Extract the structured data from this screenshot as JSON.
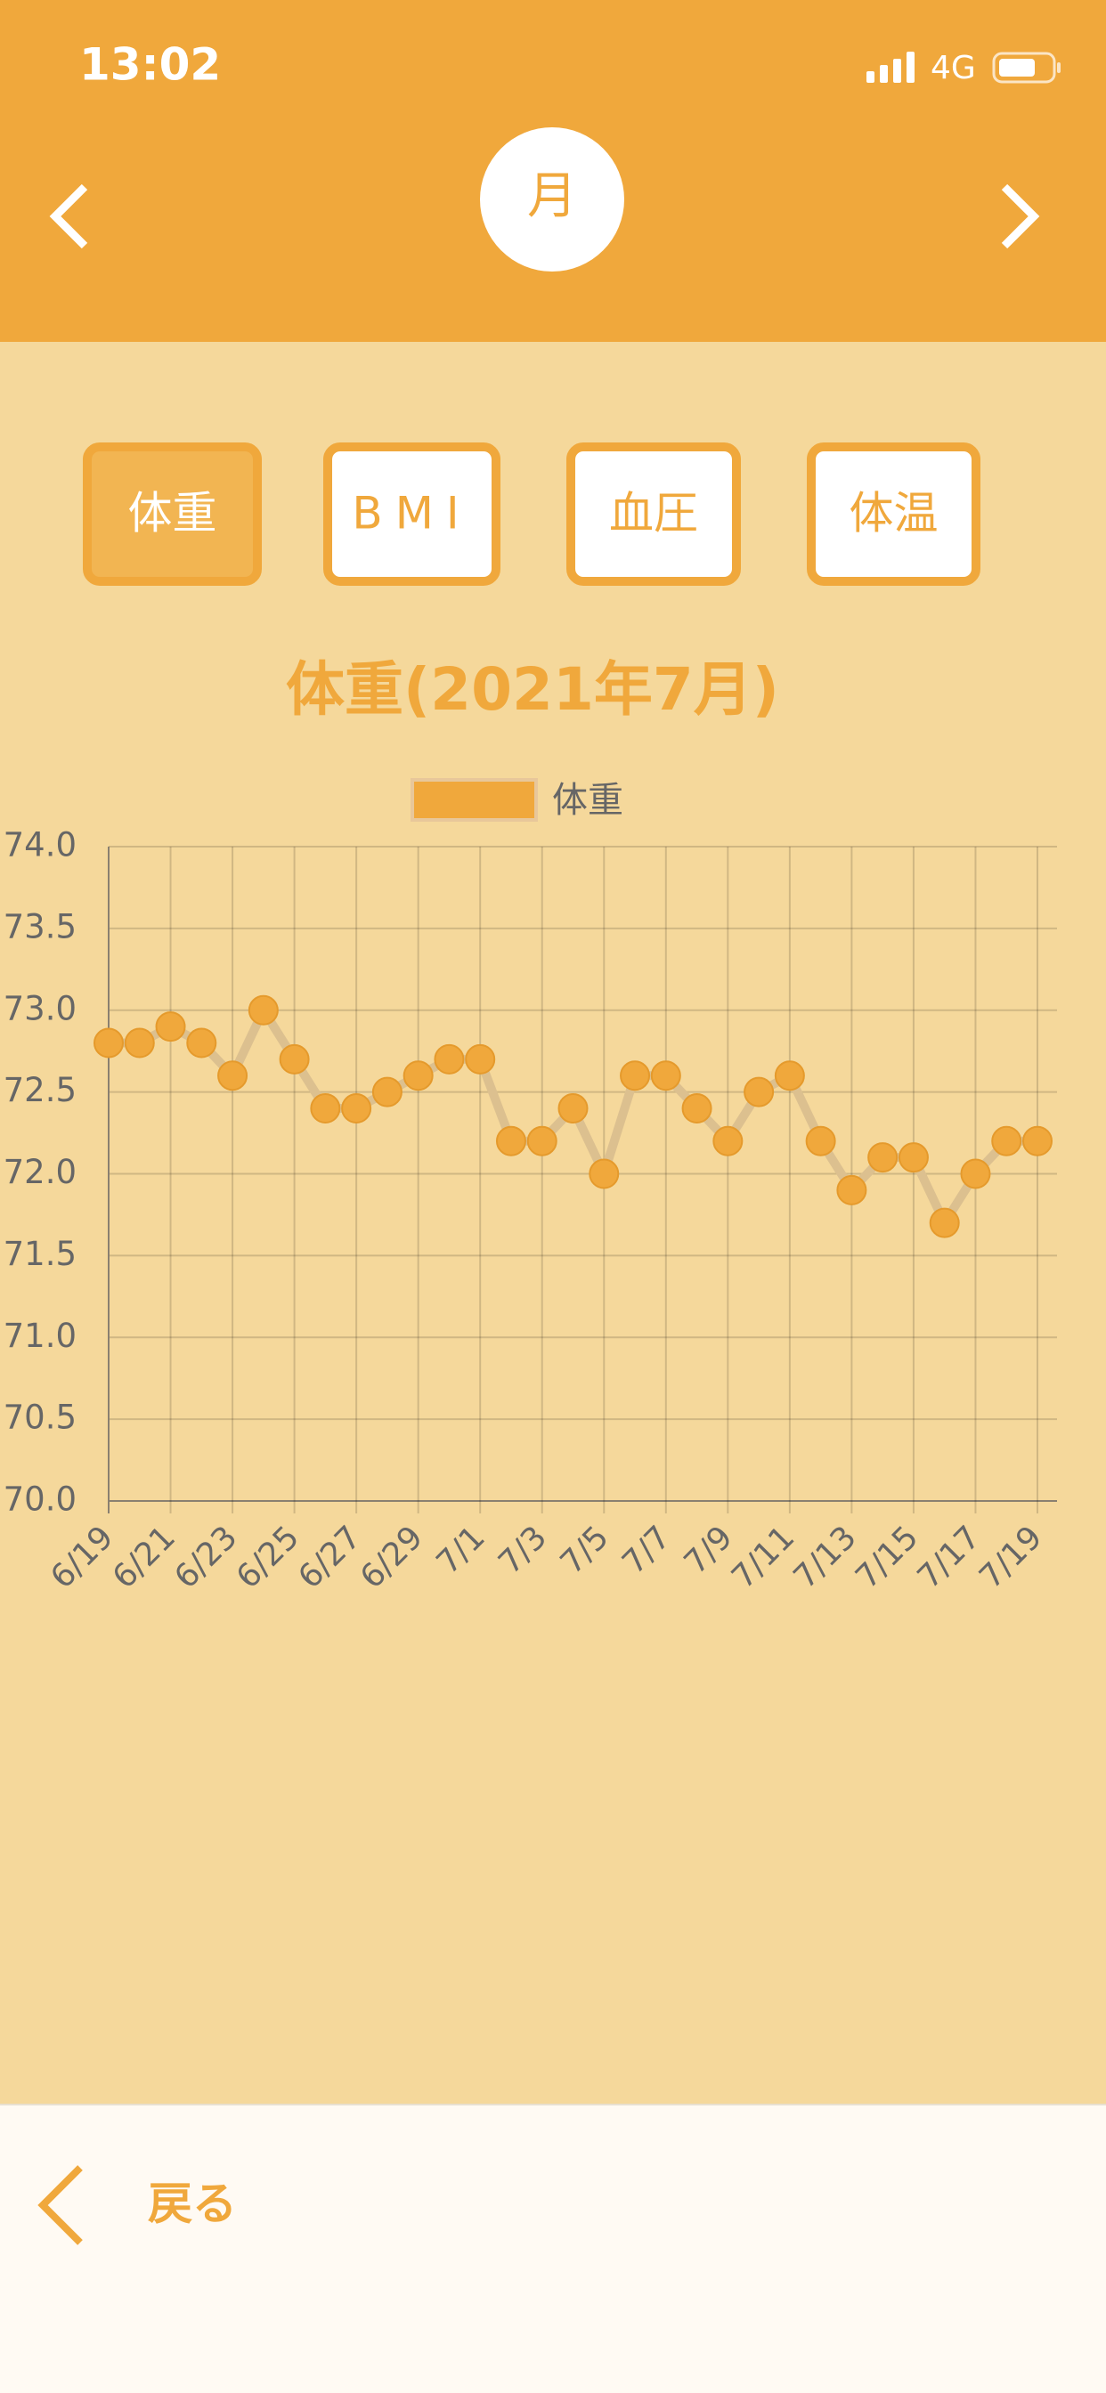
{
  "status_bar": {
    "time": "13:02",
    "network": "4G"
  },
  "header": {
    "period": "月"
  },
  "tabs": [
    "体重",
    "BMI",
    "血圧",
    "体温"
  ],
  "chart_data": {
    "type": "line",
    "title": "体重(2021年7月)",
    "categories": [
      "6/19",
      null,
      "6/21",
      null,
      "6/23",
      null,
      "6/25",
      null,
      "6/27",
      null,
      "6/29",
      null,
      "7/1",
      null,
      "7/3",
      null,
      "7/5",
      null,
      "7/7",
      null,
      "7/9",
      null,
      "7/11",
      null,
      "7/13",
      null,
      "7/15",
      null,
      "7/17",
      null,
      "7/19"
    ],
    "series": [
      {
        "name": "体重",
        "color": "#f0a83c",
        "values": [
          72.8,
          72.8,
          72.9,
          72.8,
          72.6,
          73.0,
          72.7,
          72.4,
          72.4,
          72.5,
          72.6,
          72.7,
          72.7,
          72.2,
          72.2,
          72.4,
          72.0,
          72.6,
          72.6,
          72.4,
          72.2,
          72.5,
          72.6,
          72.2,
          71.9,
          72.1,
          72.1,
          71.7,
          72.0,
          72.2,
          72.2
        ]
      }
    ],
    "ylim": [
      70,
      74
    ],
    "yticks": [
      {
        "value": 70,
        "label": "70.0"
      },
      {
        "value": 70.5,
        "label": "70.5"
      },
      {
        "value": 71,
        "label": "71.0"
      },
      {
        "value": 71.5,
        "label": "71.5"
      },
      {
        "value": 72,
        "label": "72.0"
      },
      {
        "value": 72.5,
        "label": "72.5"
      },
      {
        "value": 73,
        "label": "73.0"
      },
      {
        "value": 73.5,
        "label": "73.5"
      },
      {
        "value": 74,
        "label": "74.0"
      }
    ],
    "grid": true,
    "legend": "top"
  },
  "footer": {
    "back": "戻る"
  }
}
